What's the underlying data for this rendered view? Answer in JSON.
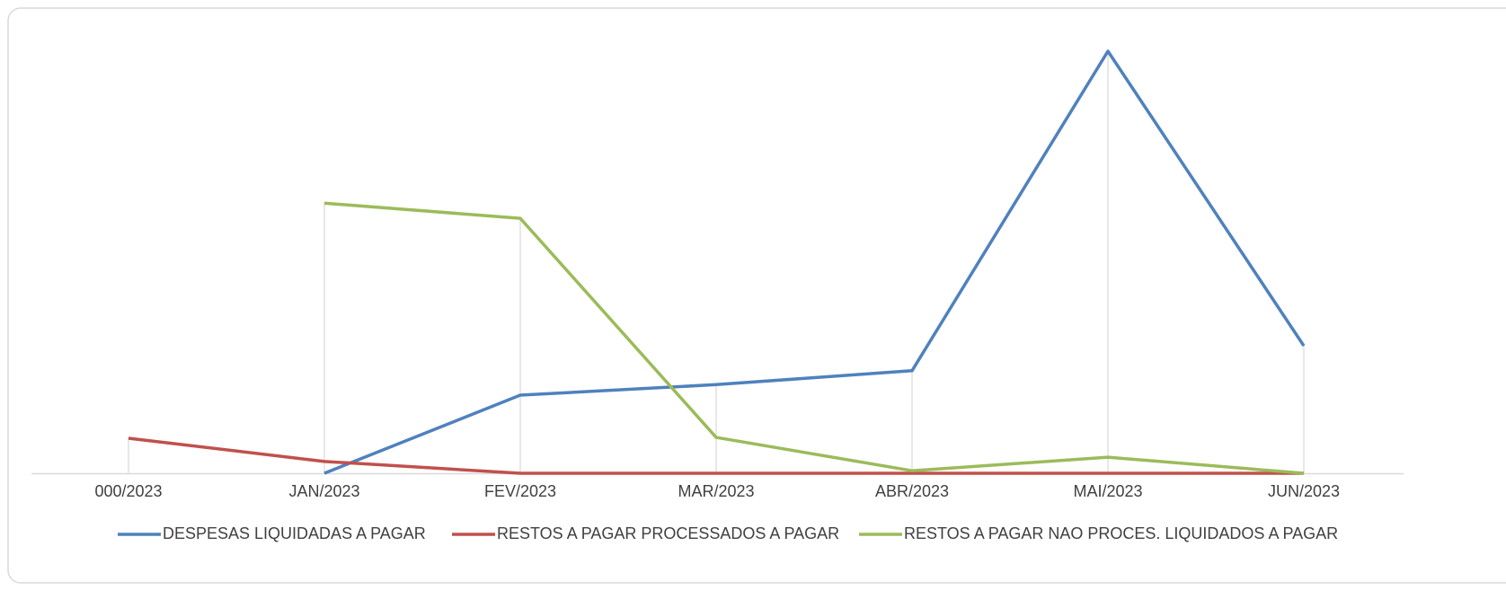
{
  "chart_data": {
    "type": "line",
    "categories": [
      "000/2023",
      "JAN/2023",
      "FEV/2023",
      "MAR/2023",
      "ABR/2023",
      "MAI/2023",
      "JUN/2023"
    ],
    "series": [
      {
        "name": "DESPESAS LIQUIDADAS A PAGAR",
        "color": "#4f81bd",
        "values": [
          null,
          0,
          18.5,
          21,
          24.3,
          100,
          30.2
        ]
      },
      {
        "name": "RESTOS A PAGAR PROCESSADOS A PAGAR",
        "color": "#c0504d",
        "values": [
          8.3,
          2.8,
          0,
          0,
          0,
          0,
          0
        ]
      },
      {
        "name": "RESTOS A PAGAR NAO PROCES. LIQUIDADOS A PAGAR",
        "color": "#9bbb59",
        "values": [
          null,
          64,
          60.4,
          8.5,
          0.6,
          3.8,
          0
        ]
      }
    ],
    "ylim": [
      0,
      100
    ],
    "drop_lines": true,
    "legend": "bottom"
  }
}
